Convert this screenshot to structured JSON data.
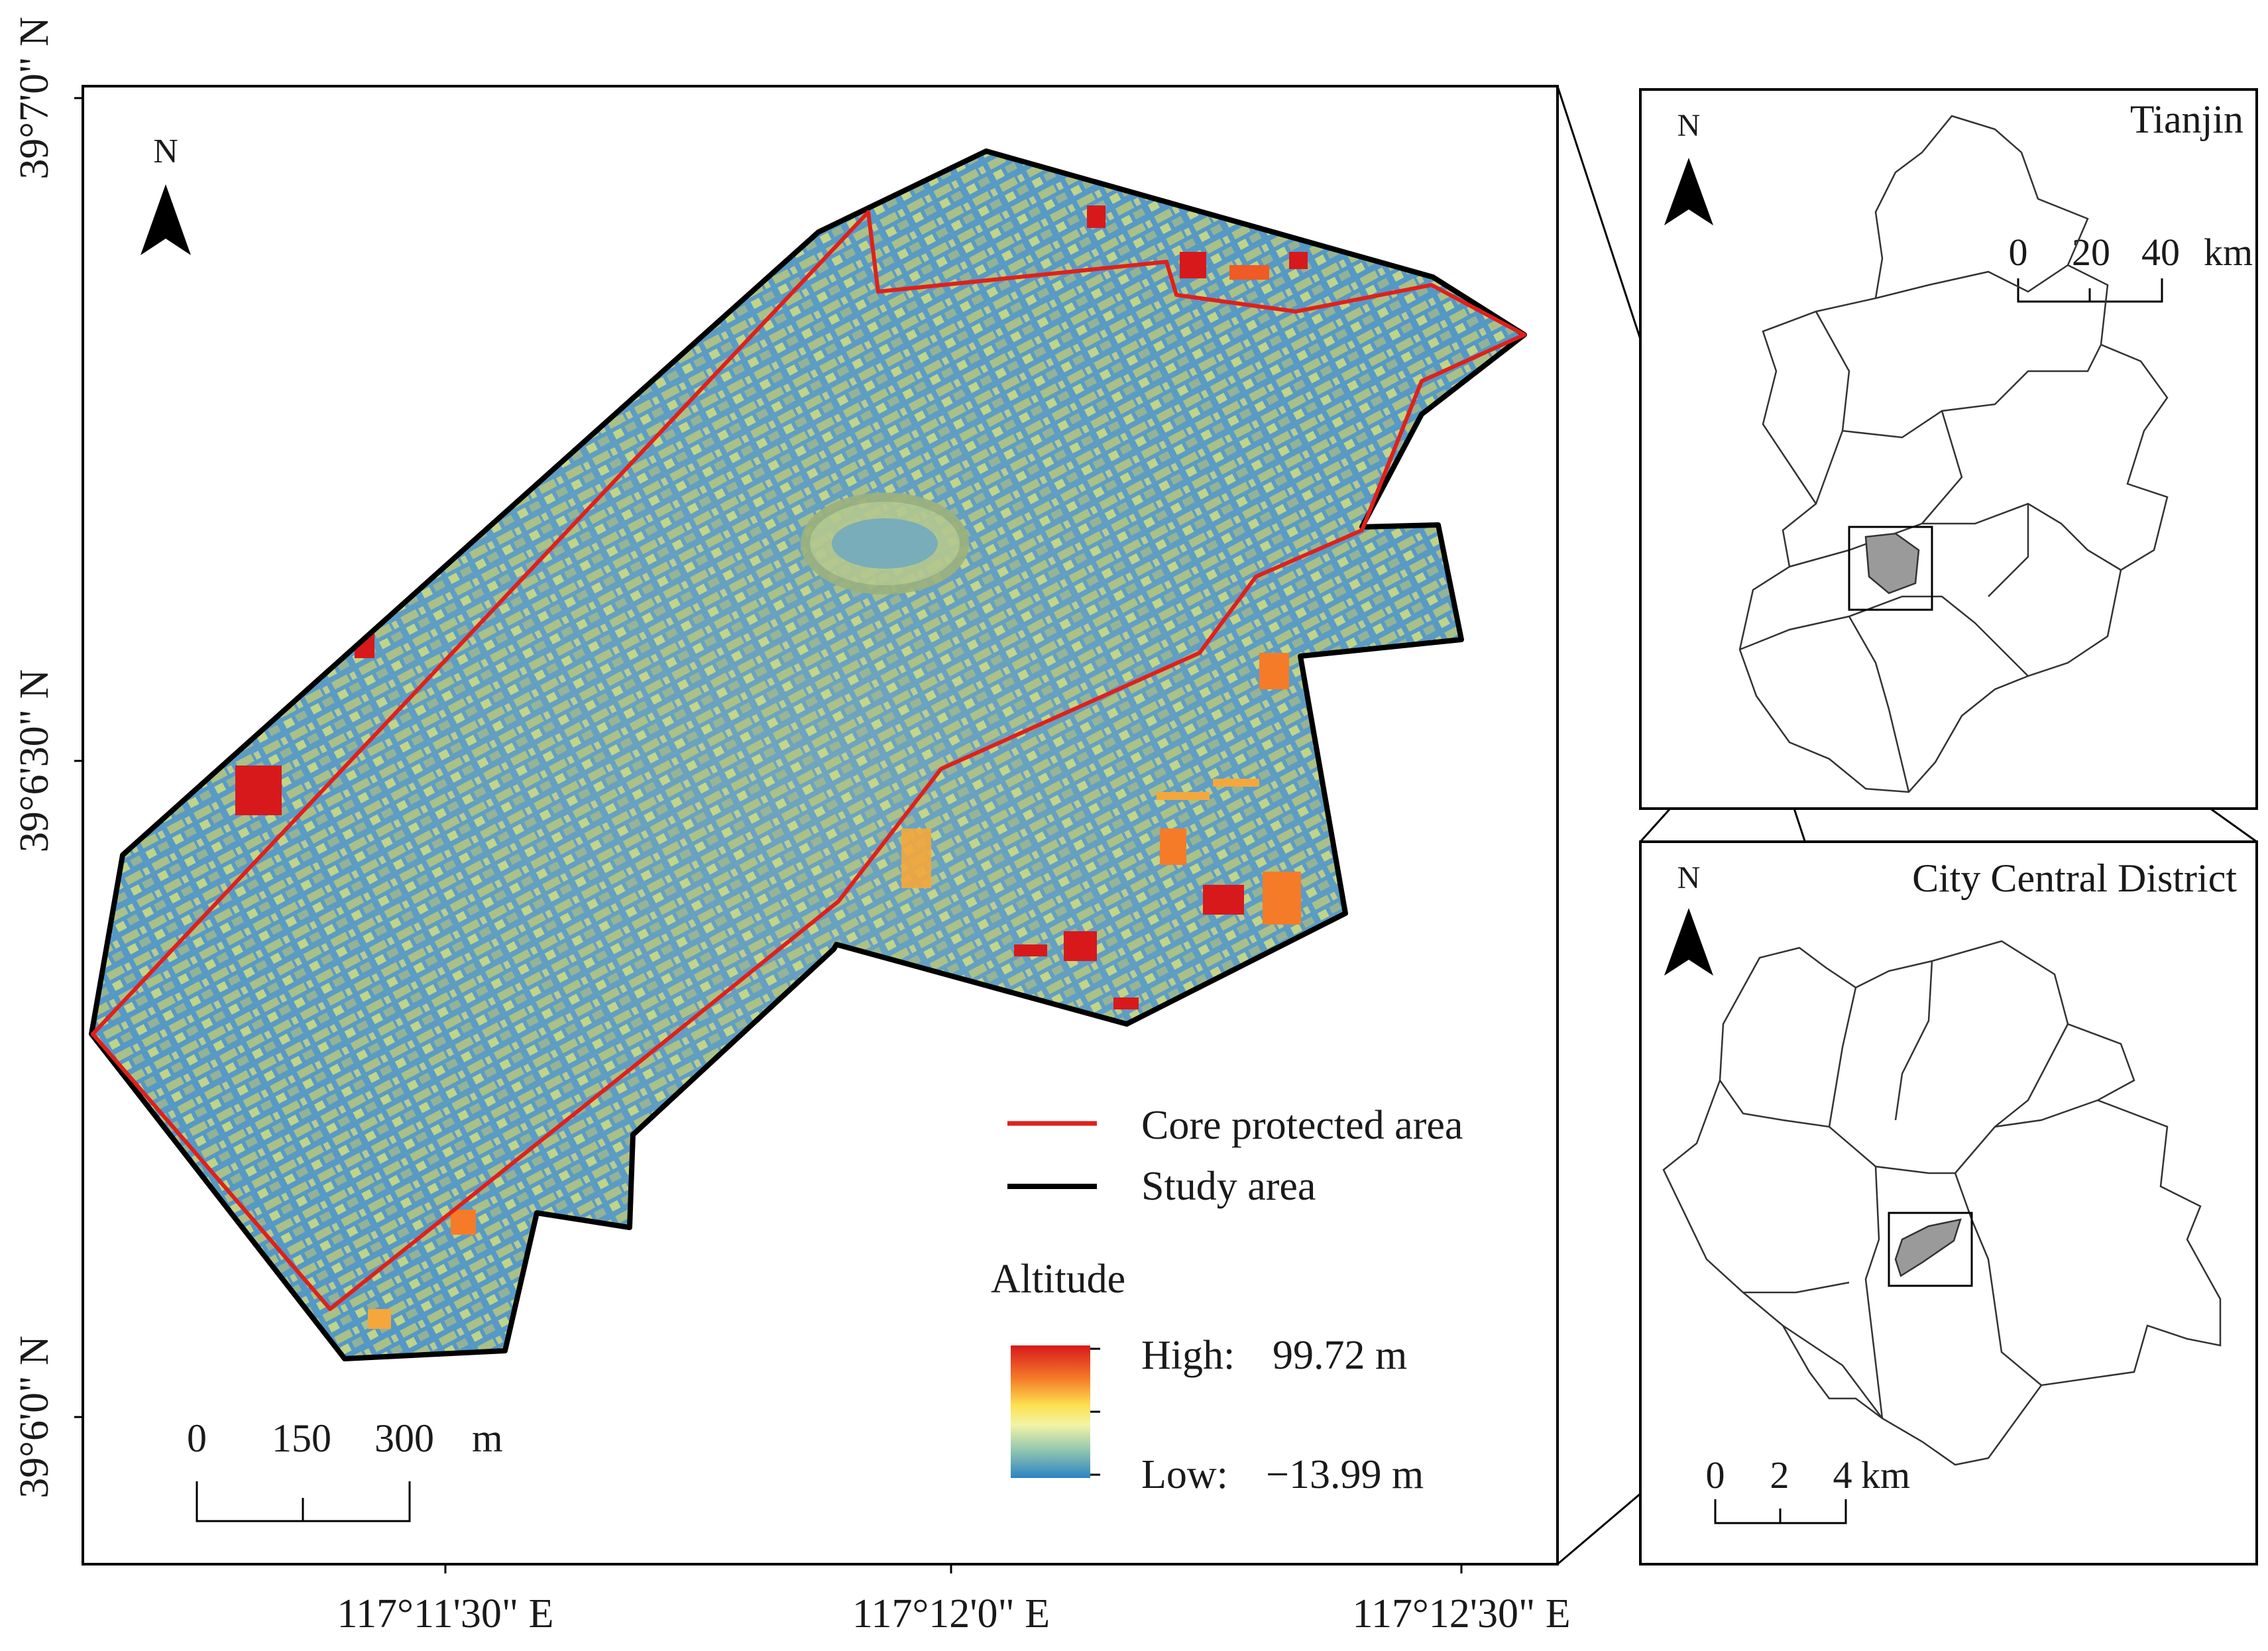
{
  "main_map": {
    "north_label": "N",
    "lat_labels": [
      "39°7'0\" N",
      "39°6'30\" N",
      "39°6'0\" N"
    ],
    "lon_labels": [
      "117°11'30\" E",
      "117°12'0\" E",
      "117°12'30\" E"
    ],
    "scale": {
      "ticks": [
        "0",
        "150",
        "300"
      ],
      "unit": "m"
    },
    "legend": {
      "core_label": "Core protected area",
      "study_label": "Study area",
      "altitude_title": "Altitude",
      "high_label": "High:",
      "high_value": "99.72 m",
      "low_label": "Low:",
      "low_value": "−13.99 m",
      "core_color": "#e0201b",
      "study_color": "#000000"
    },
    "colors": {
      "low": "#3e8fc4",
      "mid": "#e8e890",
      "high": "#d7191c"
    }
  },
  "inset_tianjin": {
    "title": "Tianjin",
    "north_label": "N",
    "scale": {
      "ticks": [
        "0",
        "20",
        "40"
      ],
      "unit": "km"
    }
  },
  "inset_district": {
    "title": "City Central District",
    "north_label": "N",
    "scale": {
      "ticks": [
        "0",
        "2",
        "4"
      ],
      "unit": "km"
    }
  }
}
